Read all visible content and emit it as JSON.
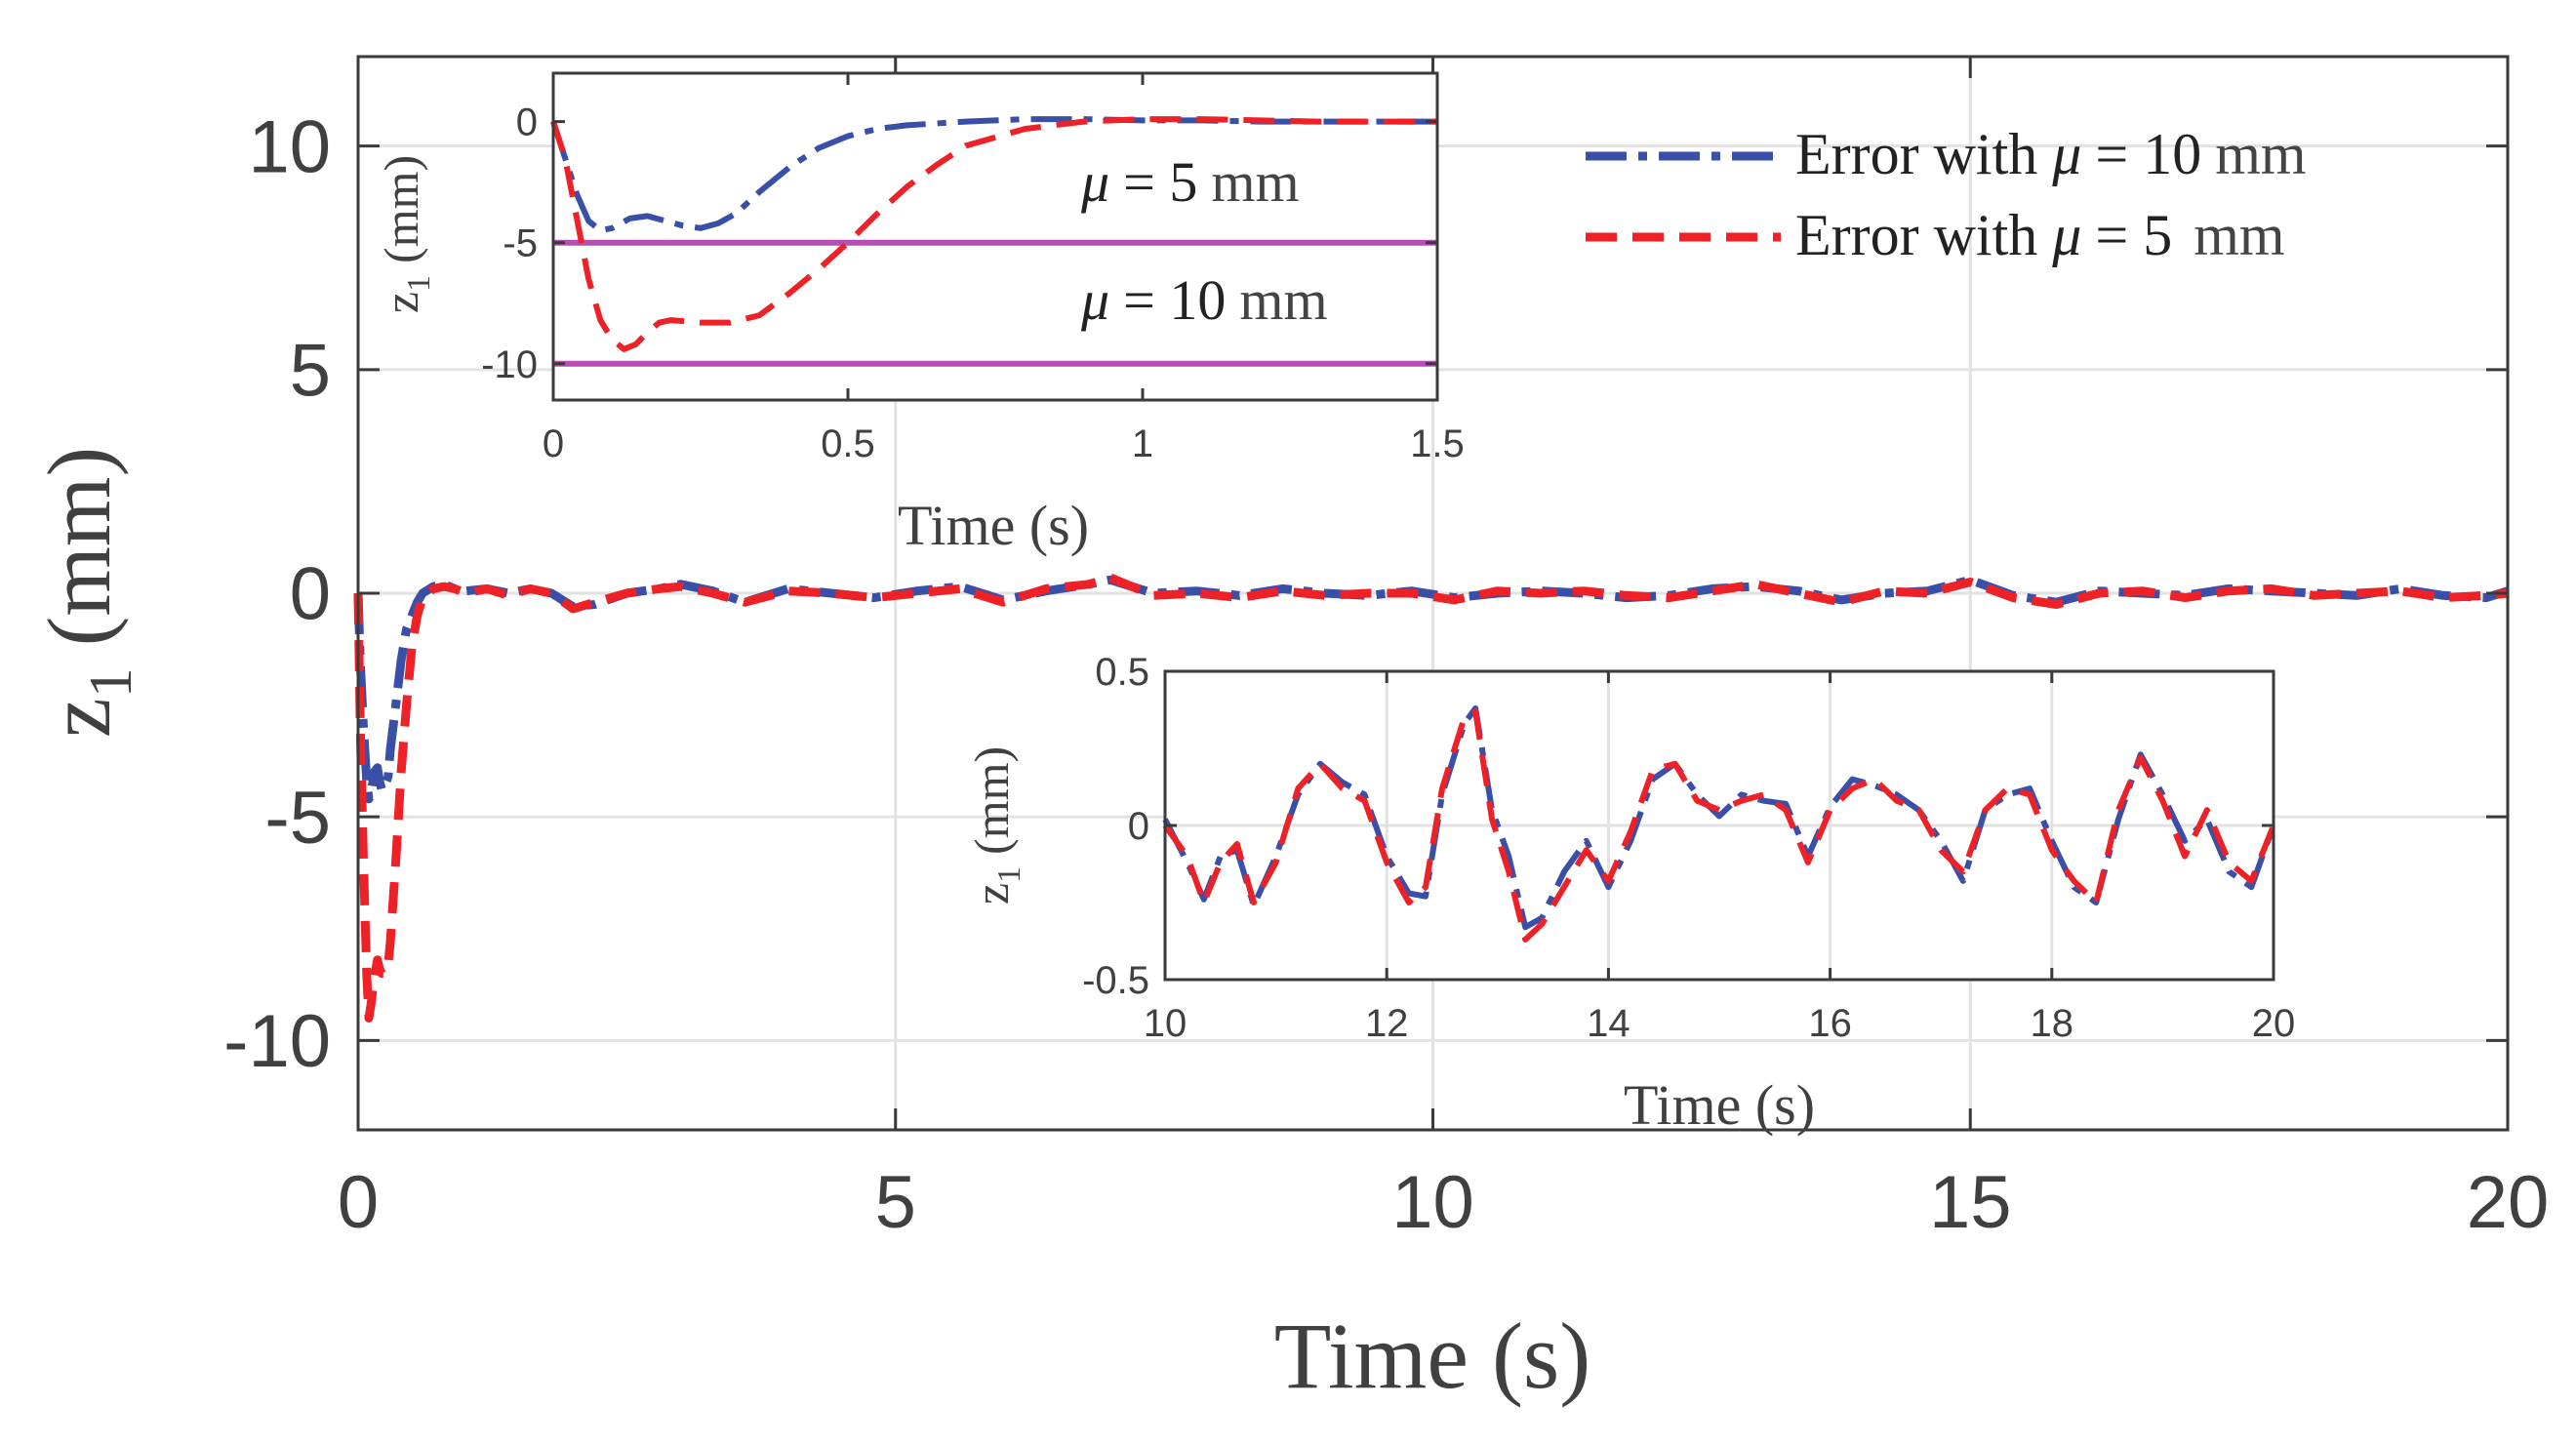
{
  "colors": {
    "blue": "#3a4fa8",
    "red": "#ee2226",
    "magenta": "#b450b4",
    "grid": "#e2e2e2",
    "axis": "#3a3a3a",
    "text": "#404040"
  },
  "chart_data": [
    {
      "id": "main",
      "type": "line",
      "title": "",
      "xlabel": "Time (s)",
      "ylabel_var": "z",
      "ylabel_sub": "1",
      "ylabel_unit": "(mm)",
      "xlim": [
        0,
        20
      ],
      "ylim": [
        -12,
        12
      ],
      "xticks": [
        0,
        5,
        10,
        15,
        20
      ],
      "xtick_labels": [
        "0",
        "5",
        "10",
        "15",
        "20"
      ],
      "yticks": [
        10,
        5,
        0,
        -5,
        -10
      ],
      "ytick_labels": [
        "10",
        "5",
        "0",
        "-5",
        "-10"
      ],
      "grid": true,
      "legend_position": "top-right",
      "series": [
        {
          "name": "Error with μ = 10 mm",
          "legend_prefix": "Error with ",
          "legend_mu": "μ",
          "legend_eq": "= 10",
          "legend_unit": "mm",
          "style": "dashdot",
          "color": "blue",
          "x": [
            0,
            0.02,
            0.05,
            0.08,
            0.1,
            0.12,
            0.15,
            0.18,
            0.2,
            0.22,
            0.25,
            0.28,
            0.3,
            0.35,
            0.4,
            0.45,
            0.5,
            0.55,
            0.6,
            0.7,
            0.8,
            0.9,
            1.0,
            1.2,
            1.4,
            1.6,
            1.8,
            2.0,
            2.2,
            2.5,
            2.8,
            3.0,
            3.3,
            3.6,
            4.0,
            4.4,
            4.8,
            5.2,
            5.6,
            6.0,
            6.4,
            6.8,
            7.0,
            7.4,
            7.8,
            8.2,
            8.6,
            9.0,
            9.4,
            9.8,
            10.2,
            10.6,
            11.0,
            11.4,
            11.8,
            12.2,
            12.6,
            13.0,
            13.4,
            13.8,
            14.2,
            14.6,
            15.0,
            15.4,
            15.8,
            16.2,
            16.6,
            17.0,
            17.4,
            17.8,
            18.2,
            18.6,
            19.0,
            19.4,
            19.8,
            20.0
          ],
          "y": [
            0,
            -1.5,
            -3.0,
            -4.2,
            -4.6,
            -4.5,
            -4.0,
            -3.9,
            -4.2,
            -4.4,
            -4.3,
            -4.1,
            -3.5,
            -2.5,
            -1.5,
            -0.8,
            -0.5,
            -0.2,
            0.0,
            0.15,
            0.2,
            0.1,
            0.05,
            0.1,
            0.0,
            0.1,
            0.0,
            -0.3,
            -0.25,
            0.0,
            0.1,
            0.2,
            0.05,
            -0.2,
            0.1,
            0.0,
            -0.1,
            0.05,
            0.15,
            -0.15,
            0.05,
            0.2,
            0.3,
            0.0,
            0.05,
            -0.05,
            0.1,
            0.0,
            -0.05,
            0.05,
            -0.1,
            0.0,
            0.05,
            0.0,
            -0.1,
            -0.05,
            0.1,
            0.15,
            0.05,
            -0.15,
            0.0,
            0.05,
            0.3,
            -0.05,
            -0.2,
            0.05,
            0.0,
            -0.05,
            0.1,
            0.05,
            0.0,
            -0.05,
            0.1,
            -0.05,
            -0.1,
            0.05
          ]
        },
        {
          "name": "Error with μ = 5 mm",
          "legend_prefix": "Error with ",
          "legend_mu": "μ",
          "legend_eq": "= 5",
          "legend_unit": "mm",
          "style": "dashed",
          "color": "red",
          "x": [
            0,
            0.02,
            0.05,
            0.08,
            0.1,
            0.12,
            0.15,
            0.18,
            0.2,
            0.22,
            0.25,
            0.28,
            0.3,
            0.35,
            0.4,
            0.45,
            0.5,
            0.55,
            0.6,
            0.7,
            0.8,
            0.9,
            1.0,
            1.2,
            1.4,
            1.6,
            1.8,
            2.0,
            2.2,
            2.5,
            2.8,
            3.0,
            3.3,
            3.6,
            4.0,
            4.4,
            4.8,
            5.2,
            5.6,
            6.0,
            6.4,
            6.8,
            7.0,
            7.4,
            7.8,
            8.2,
            8.6,
            9.0,
            9.4,
            9.8,
            10.2,
            10.6,
            11.0,
            11.4,
            11.8,
            12.2,
            12.6,
            13.0,
            13.4,
            13.8,
            14.2,
            14.6,
            15.0,
            15.4,
            15.8,
            16.2,
            16.6,
            17.0,
            17.4,
            17.8,
            18.2,
            18.6,
            19.0,
            19.4,
            19.8,
            20.0
          ],
          "y": [
            0,
            -3.0,
            -6.0,
            -8.5,
            -9.5,
            -9.2,
            -8.6,
            -8.2,
            -8.4,
            -8.5,
            -8.5,
            -8.3,
            -7.8,
            -6.0,
            -4.0,
            -2.5,
            -1.2,
            -0.5,
            -0.1,
            0.1,
            0.15,
            0.1,
            0.0,
            0.1,
            -0.05,
            0.1,
            0.0,
            -0.35,
            -0.2,
            0.0,
            0.1,
            0.15,
            0.0,
            -0.2,
            0.05,
            0.0,
            -0.1,
            0.0,
            0.1,
            -0.2,
            0.1,
            0.2,
            0.35,
            -0.05,
            0.0,
            -0.1,
            0.05,
            -0.05,
            0.0,
            0.0,
            -0.15,
            0.05,
            0.0,
            0.05,
            -0.05,
            -0.1,
            0.05,
            0.2,
            0.0,
            -0.2,
            0.05,
            0.0,
            0.25,
            -0.1,
            -0.25,
            0.0,
            0.05,
            -0.1,
            0.05,
            0.1,
            -0.05,
            0.0,
            0.05,
            -0.1,
            -0.05,
            0.0
          ]
        }
      ]
    },
    {
      "id": "inset1",
      "type": "line",
      "xlabel": "Time (s)",
      "ylabel_var": "z",
      "ylabel_sub": "1",
      "ylabel_unit": "(mm)",
      "xlim": [
        0,
        1.5
      ],
      "ylim": [
        -11.5,
        2
      ],
      "xticks": [
        0,
        0.5,
        1,
        1.5
      ],
      "xtick_labels": [
        "0",
        "0.5",
        "1",
        "1.5"
      ],
      "yticks": [
        0,
        -5,
        -10
      ],
      "ytick_labels": [
        "0",
        "-5",
        "-10"
      ],
      "grid": false,
      "hlines": [
        {
          "y": -5,
          "color": "magenta",
          "label_mu": "μ",
          "label_eq": "= 5",
          "label_unit": "mm"
        },
        {
          "y": -10,
          "color": "magenta",
          "label_mu": "μ",
          "label_eq": "= 10",
          "label_unit": "mm"
        }
      ],
      "series": [
        {
          "name": "Error with μ = 10 mm",
          "style": "dashdot",
          "color": "blue",
          "x": [
            0,
            0.02,
            0.04,
            0.06,
            0.08,
            0.1,
            0.13,
            0.16,
            0.19,
            0.22,
            0.25,
            0.28,
            0.31,
            0.35,
            0.4,
            0.45,
            0.5,
            0.55,
            0.6,
            0.7,
            0.8,
            0.9,
            1.0,
            1.1,
            1.2,
            1.3,
            1.4,
            1.5
          ],
          "y": [
            0,
            -1.5,
            -3.0,
            -4.1,
            -4.5,
            -4.4,
            -4.0,
            -3.9,
            -4.1,
            -4.3,
            -4.4,
            -4.2,
            -3.8,
            -2.9,
            -1.9,
            -1.1,
            -0.6,
            -0.3,
            -0.15,
            0.0,
            0.1,
            0.1,
            0.05,
            0.05,
            0.0,
            0.0,
            0.0,
            0.0
          ]
        },
        {
          "name": "Error with μ = 5 mm",
          "style": "dashed",
          "color": "red",
          "x": [
            0,
            0.02,
            0.04,
            0.06,
            0.08,
            0.1,
            0.12,
            0.14,
            0.16,
            0.18,
            0.2,
            0.25,
            0.3,
            0.35,
            0.4,
            0.45,
            0.5,
            0.55,
            0.6,
            0.65,
            0.7,
            0.8,
            0.9,
            1.0,
            1.1,
            1.2,
            1.3,
            1.4,
            1.5
          ],
          "y": [
            0,
            -1.5,
            -4.0,
            -6.5,
            -8.2,
            -9.0,
            -9.4,
            -9.2,
            -8.7,
            -8.3,
            -8.2,
            -8.3,
            -8.3,
            -8.0,
            -7.1,
            -6.1,
            -5.0,
            -3.8,
            -2.7,
            -1.8,
            -1.0,
            -0.3,
            0.0,
            0.1,
            0.1,
            0.05,
            0.0,
            0.0,
            0.0
          ]
        }
      ]
    },
    {
      "id": "inset2",
      "type": "line",
      "xlabel": "Time (s)",
      "ylabel_var": "z",
      "ylabel_sub": "1",
      "ylabel_unit": "(mm)",
      "xlim": [
        10,
        20
      ],
      "ylim": [
        -0.5,
        0.5
      ],
      "xticks": [
        10,
        12,
        14,
        16,
        18,
        20
      ],
      "xtick_labels": [
        "10",
        "12",
        "14",
        "16",
        "18",
        "20"
      ],
      "yticks": [
        0.5,
        0,
        -0.5
      ],
      "ytick_labels": [
        "0.5",
        "0",
        "-0.5"
      ],
      "grid": true,
      "series": [
        {
          "name": "Error with μ = 10 mm",
          "style": "dashdot",
          "color": "blue",
          "x": [
            10.0,
            10.2,
            10.35,
            10.5,
            10.65,
            10.8,
            11.0,
            11.2,
            11.4,
            11.6,
            11.8,
            12.0,
            12.2,
            12.35,
            12.5,
            12.7,
            12.8,
            12.95,
            13.1,
            13.25,
            13.4,
            13.6,
            13.8,
            14.0,
            14.2,
            14.4,
            14.6,
            14.8,
            15.0,
            15.2,
            15.4,
            15.6,
            15.8,
            16.0,
            16.2,
            16.4,
            16.6,
            16.8,
            17.0,
            17.2,
            17.4,
            17.6,
            17.8,
            18.0,
            18.2,
            18.4,
            18.6,
            18.8,
            19.0,
            19.2,
            19.4,
            19.6,
            19.8,
            20.0
          ],
          "y": [
            0.02,
            -0.12,
            -0.24,
            -0.1,
            -0.08,
            -0.26,
            -0.1,
            0.1,
            0.2,
            0.14,
            0.1,
            -0.1,
            -0.22,
            -0.23,
            0.1,
            0.33,
            0.38,
            0.05,
            -0.1,
            -0.33,
            -0.3,
            -0.15,
            -0.05,
            -0.2,
            -0.05,
            0.15,
            0.2,
            0.1,
            0.03,
            0.1,
            0.08,
            0.07,
            -0.1,
            0.06,
            0.15,
            0.13,
            0.1,
            0.05,
            -0.05,
            -0.18,
            0.05,
            0.1,
            0.12,
            -0.05,
            -0.2,
            -0.25,
            0.02,
            0.23,
            0.1,
            -0.05,
            0.02,
            -0.15,
            -0.2,
            0.0
          ]
        },
        {
          "name": "Error with μ = 5 mm",
          "style": "dashed",
          "color": "red",
          "x": [
            10.0,
            10.2,
            10.35,
            10.5,
            10.65,
            10.8,
            11.0,
            11.2,
            11.4,
            11.6,
            11.8,
            12.0,
            12.2,
            12.35,
            12.5,
            12.7,
            12.8,
            12.95,
            13.1,
            13.25,
            13.4,
            13.6,
            13.8,
            14.0,
            14.2,
            14.4,
            14.6,
            14.8,
            15.0,
            15.2,
            15.4,
            15.6,
            15.8,
            16.0,
            16.2,
            16.4,
            16.6,
            16.8,
            17.0,
            17.2,
            17.4,
            17.6,
            17.8,
            18.0,
            18.2,
            18.4,
            18.6,
            18.8,
            19.0,
            19.2,
            19.4,
            19.6,
            19.8,
            20.0
          ],
          "y": [
            0.0,
            -0.1,
            -0.25,
            -0.12,
            -0.06,
            -0.25,
            -0.12,
            0.12,
            0.2,
            0.12,
            0.08,
            -0.12,
            -0.25,
            -0.2,
            0.12,
            0.35,
            0.37,
            0.02,
            -0.15,
            -0.37,
            -0.32,
            -0.2,
            -0.08,
            -0.18,
            -0.02,
            0.18,
            0.2,
            0.08,
            0.05,
            0.08,
            0.1,
            0.05,
            -0.12,
            0.05,
            0.12,
            0.15,
            0.08,
            0.05,
            -0.08,
            -0.15,
            0.05,
            0.12,
            0.1,
            -0.08,
            -0.18,
            -0.25,
            0.05,
            0.22,
            0.08,
            -0.1,
            0.05,
            -0.12,
            -0.18,
            0.0
          ]
        }
      ]
    }
  ]
}
